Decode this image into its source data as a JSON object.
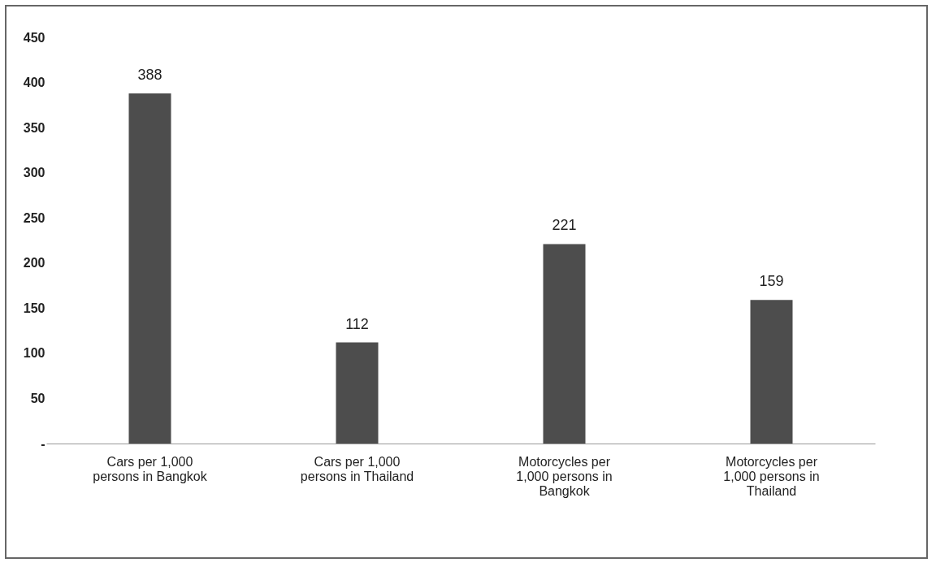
{
  "chart_data": {
    "type": "bar",
    "categories": [
      "Cars per 1,000 persons in Bangkok",
      "Cars per 1,000 persons in Thailand",
      "Motorcycles per 1,000 persons in Bangkok",
      "Motorcycles per 1,000 persons in Thailand"
    ],
    "values": [
      388,
      112,
      221,
      159
    ],
    "color": "#4d4d4d",
    "ylim": [
      0,
      450
    ],
    "yticks": [
      {
        "value": 0,
        "label": "-"
      },
      50,
      100,
      150,
      200,
      250,
      300,
      350,
      400,
      450
    ],
    "grid": false,
    "data_labels": true
  }
}
